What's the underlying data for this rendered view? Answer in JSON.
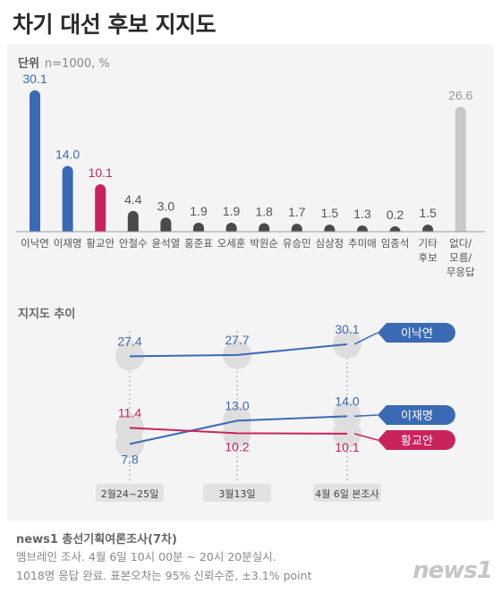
{
  "title": "차기 대선 후보 지지도",
  "unit": {
    "label": "단위",
    "text": "n=1000, %"
  },
  "trend_title": "지지도 추이",
  "footer": {
    "source": "news1 총선기획여론조사(7차)",
    "line1": "엠브레인 조사. 4월 6일 10시 00분 ~ 20시 20분실시.",
    "line2": "1018명 응답 완료. 표본오차는 95% 신뢰수준, ±3.1% point"
  },
  "logo": "news1",
  "colors": {
    "blue": "#3b6ab5",
    "red": "#c9235e",
    "dark": "#4a4a4a",
    "gray": "#c8c8c8"
  },
  "chart_data": [
    {
      "type": "bar",
      "categories": [
        "이낙연",
        "이재명",
        "황교안",
        "안철수",
        "윤석열",
        "홍준표",
        "오세훈",
        "박원순",
        "유승민",
        "심상정",
        "추미애",
        "임종석",
        "기타 후보",
        "없다/ 모름/ 무응답"
      ],
      "values": [
        30.1,
        14.0,
        10.1,
        4.4,
        3.0,
        1.9,
        1.9,
        1.8,
        1.7,
        1.5,
        1.3,
        0.2,
        1.5,
        26.6
      ],
      "value_labels": [
        "30.1",
        "14.0",
        "10.1",
        "4.4",
        "3.0",
        "1.9",
        "1.9",
        "1.8",
        "1.7",
        "1.5",
        "1.3",
        "0.2",
        "1.5",
        "26.6"
      ],
      "bar_colors": [
        "#3b6ab5",
        "#3b6ab5",
        "#c9235e",
        "#4a4a4a",
        "#4a4a4a",
        "#4a4a4a",
        "#4a4a4a",
        "#4a4a4a",
        "#4a4a4a",
        "#4a4a4a",
        "#4a4a4a",
        "#4a4a4a",
        "#4a4a4a",
        "#c8c8c8"
      ],
      "label_colors": [
        "#3b6ab5",
        "#3b6ab5",
        "#c9235e",
        "#555555",
        "#555555",
        "#555555",
        "#555555",
        "#555555",
        "#555555",
        "#555555",
        "#555555",
        "#555555",
        "#555555",
        "#999999"
      ]
    },
    {
      "type": "line",
      "x": [
        "2월24~25일",
        "3월13일",
        "4월 6일 본조사"
      ],
      "series": [
        {
          "name": "이낙연",
          "values": [
            27.4,
            27.7,
            30.1
          ],
          "labels": [
            "27.4",
            "27.7",
            "30.1"
          ],
          "color": "#3b6ab5"
        },
        {
          "name": "이재명",
          "values": [
            7.8,
            13.0,
            14.0
          ],
          "labels": [
            "7.8",
            "13.0",
            "14.0"
          ],
          "color": "#3b6ab5"
        },
        {
          "name": "황교안",
          "values": [
            11.4,
            10.2,
            10.1
          ],
          "labels": [
            "11.4",
            "10.2",
            "10.1"
          ],
          "color": "#c9235e"
        }
      ]
    }
  ]
}
